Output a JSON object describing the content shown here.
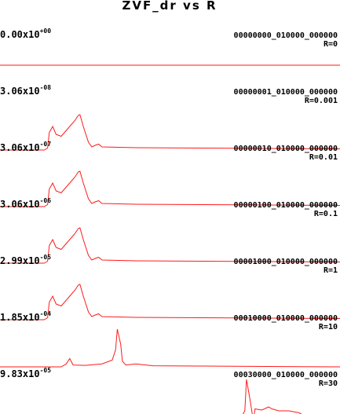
{
  "title": "ZVF_dr vs R",
  "colors": {
    "trace": "#ff1a1a",
    "text": "#000000",
    "background": "#ffffff"
  },
  "panels": [
    {
      "mantissa": "0.00x10",
      "exponent": "+00",
      "id": "00000000_010000_000000",
      "r": "R=0",
      "shape": "flat"
    },
    {
      "mantissa": "3.06x10",
      "exponent": "-08",
      "id": "00000001_010000_000000",
      "r": "R=0.001",
      "shape": "A"
    },
    {
      "mantissa": "3.06x10",
      "exponent": "-07",
      "id": "00000010_010000_000000",
      "r": "R=0.01",
      "shape": "A"
    },
    {
      "mantissa": "3.06x10",
      "exponent": "-06",
      "id": "00000100_010000_000000",
      "r": "R=0.1",
      "shape": "A"
    },
    {
      "mantissa": "2.99x10",
      "exponent": "-05",
      "id": "00001000_010000_000000",
      "r": "R=1",
      "shape": "A"
    },
    {
      "mantissa": "1.85x10",
      "exponent": "-04",
      "id": "00010000_010000_000000",
      "r": "R=10",
      "shape": "B"
    },
    {
      "mantissa": "9.83x10",
      "exponent": "-05",
      "id": "00030000_010000_000000",
      "r": "R=30",
      "shape": "C"
    }
  ],
  "chart_data": {
    "type": "line",
    "title": "ZVF_dr vs R",
    "xlabel": "",
    "ylabel": "",
    "grid": false,
    "series_count": 7,
    "series_labels": [
      "R=0",
      "R=0.001",
      "R=0.01",
      "R=0.1",
      "R=1",
      "R=10",
      "R=30"
    ],
    "scale_factors": [
      "0.00x10^+00",
      "3.06x10^-08",
      "3.06x10^-07",
      "3.06x10^-06",
      "2.99x10^-05",
      "1.85x10^-04",
      "9.83x10^-05"
    ],
    "shapes": {
      "flat": [
        [
          0,
          0
        ],
        [
          1,
          0
        ]
      ],
      "A": [
        [
          0,
          0
        ],
        [
          0.13,
          0
        ],
        [
          0.14,
          0.05
        ],
        [
          0.145,
          0.45
        ],
        [
          0.155,
          0.6
        ],
        [
          0.165,
          0.4
        ],
        [
          0.18,
          0.35
        ],
        [
          0.2,
          0.55
        ],
        [
          0.22,
          0.75
        ],
        [
          0.23,
          0.88
        ],
        [
          0.235,
          0.9
        ],
        [
          0.245,
          0.6
        ],
        [
          0.26,
          0.2
        ],
        [
          0.27,
          0.08
        ],
        [
          0.28,
          0.12
        ],
        [
          0.29,
          0.15
        ],
        [
          0.3,
          0.08
        ],
        [
          0.4,
          0.06
        ],
        [
          0.6,
          0.05
        ],
        [
          0.8,
          0.04
        ],
        [
          1.0,
          0.03
        ]
      ],
      "B": [
        [
          0,
          0
        ],
        [
          0.18,
          0
        ],
        [
          0.195,
          0.08
        ],
        [
          0.205,
          0.22
        ],
        [
          0.215,
          0.05
        ],
        [
          0.25,
          0.04
        ],
        [
          0.3,
          0.08
        ],
        [
          0.33,
          0.18
        ],
        [
          0.34,
          0.45
        ],
        [
          0.345,
          1.0
        ],
        [
          0.355,
          0.6
        ],
        [
          0.36,
          0.15
        ],
        [
          0.37,
          0.05
        ],
        [
          0.4,
          0.08
        ],
        [
          0.45,
          0.03
        ],
        [
          0.6,
          0.02
        ],
        [
          1.0,
          0
        ]
      ],
      "C": [
        [
          0,
          0
        ],
        [
          0.4,
          0
        ],
        [
          0.43,
          -0.02
        ],
        [
          0.48,
          0.02
        ],
        [
          0.5,
          -0.01
        ],
        [
          0.6,
          0
        ],
        [
          0.62,
          -0.05
        ],
        [
          0.65,
          -0.01
        ],
        [
          0.68,
          -0.15
        ],
        [
          0.7,
          -0.1
        ],
        [
          0.72,
          0.2
        ],
        [
          0.725,
          1.0
        ],
        [
          0.735,
          0.5
        ],
        [
          0.745,
          -0.05
        ],
        [
          0.75,
          0.25
        ],
        [
          0.77,
          0.22
        ],
        [
          0.79,
          0.3
        ],
        [
          0.8,
          0.25
        ],
        [
          0.82,
          0.2
        ],
        [
          0.85,
          0.2
        ],
        [
          0.88,
          0.15
        ],
        [
          0.9,
          0.05
        ],
        [
          0.93,
          0.08
        ],
        [
          0.95,
          -0.02
        ],
        [
          1.0,
          0
        ]
      ]
    }
  }
}
